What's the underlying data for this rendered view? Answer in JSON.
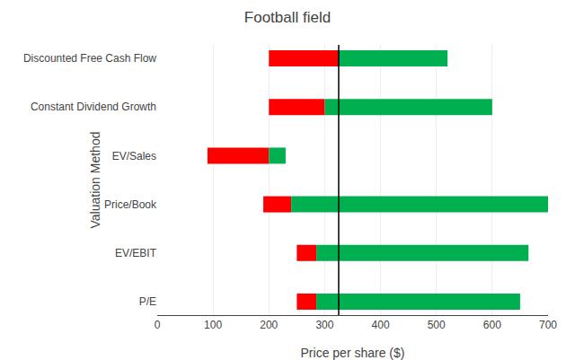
{
  "chart_data": {
    "type": "bar",
    "orientation": "horizontal",
    "title": "Football field",
    "xlabel": "Price per share ($)",
    "ylabel": "Valuation Method",
    "categories": [
      "P/E",
      "EV/EBIT",
      "Price/Book",
      "EV/Sales",
      "Constant Dividend Growth",
      "Discounted Free Cash Flow"
    ],
    "series": [
      {
        "color": "#FF0000",
        "start": [
          250,
          250,
          190,
          90,
          200,
          200
        ],
        "end": [
          285,
          285,
          240,
          200,
          300,
          325
        ]
      },
      {
        "color": "#00B050",
        "start": [
          285,
          285,
          240,
          200,
          300,
          325
        ],
        "end": [
          650,
          665,
          700,
          230,
          600,
          520
        ]
      }
    ],
    "current_price": 325,
    "line_color": "#000000",
    "xlim": [
      0,
      700
    ],
    "xticks": [
      0,
      100,
      200,
      300,
      400,
      500,
      600,
      700
    ],
    "grid": true
  }
}
